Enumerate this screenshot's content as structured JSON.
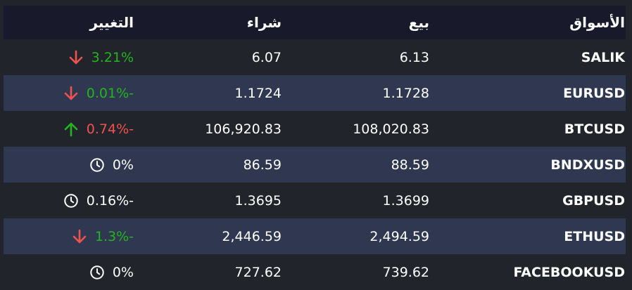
{
  "header": {
    "market": "الأسواق",
    "sell": "بيع",
    "buy": "شراء",
    "change": "التغيير"
  },
  "colors": {
    "up": "#22b51f",
    "down": "#f0524f",
    "neutral": "#ffffff"
  },
  "rows": [
    {
      "market": "SALIK",
      "sell": "6.13",
      "buy": "6.07",
      "change": "3.21%",
      "icon": "arrow-down-icon",
      "icon_color": "#f0524f",
      "change_color": "#22b51f"
    },
    {
      "market": "EURUSD",
      "sell": "1.1728",
      "buy": "1.1724",
      "change": "0.01%-",
      "icon": "arrow-down-icon",
      "icon_color": "#f0524f",
      "change_color": "#22b51f"
    },
    {
      "market": "BTCUSD",
      "sell": "108,020.83",
      "buy": "106,920.83",
      "change": "0.74%-",
      "icon": "arrow-up-icon",
      "icon_color": "#22b51f",
      "change_color": "#f0524f"
    },
    {
      "market": "BNDXUSD",
      "sell": "88.59",
      "buy": "86.59",
      "change": "0%",
      "icon": "clock-icon",
      "icon_color": "#ffffff",
      "change_color": "#ffffff"
    },
    {
      "market": "GBPUSD",
      "sell": "1.3699",
      "buy": "1.3695",
      "change": "0.16%-",
      "icon": "clock-icon",
      "icon_color": "#ffffff",
      "change_color": "#ffffff"
    },
    {
      "market": "ETHUSD",
      "sell": "2,494.59",
      "buy": "2,446.59",
      "change": "1.3%-",
      "icon": "arrow-down-icon",
      "icon_color": "#f0524f",
      "change_color": "#22b51f"
    },
    {
      "market": "FACEBOOKUSD",
      "sell": "739.62",
      "buy": "727.62",
      "change": "0%",
      "icon": "clock-icon",
      "icon_color": "#ffffff",
      "change_color": "#ffffff"
    }
  ]
}
